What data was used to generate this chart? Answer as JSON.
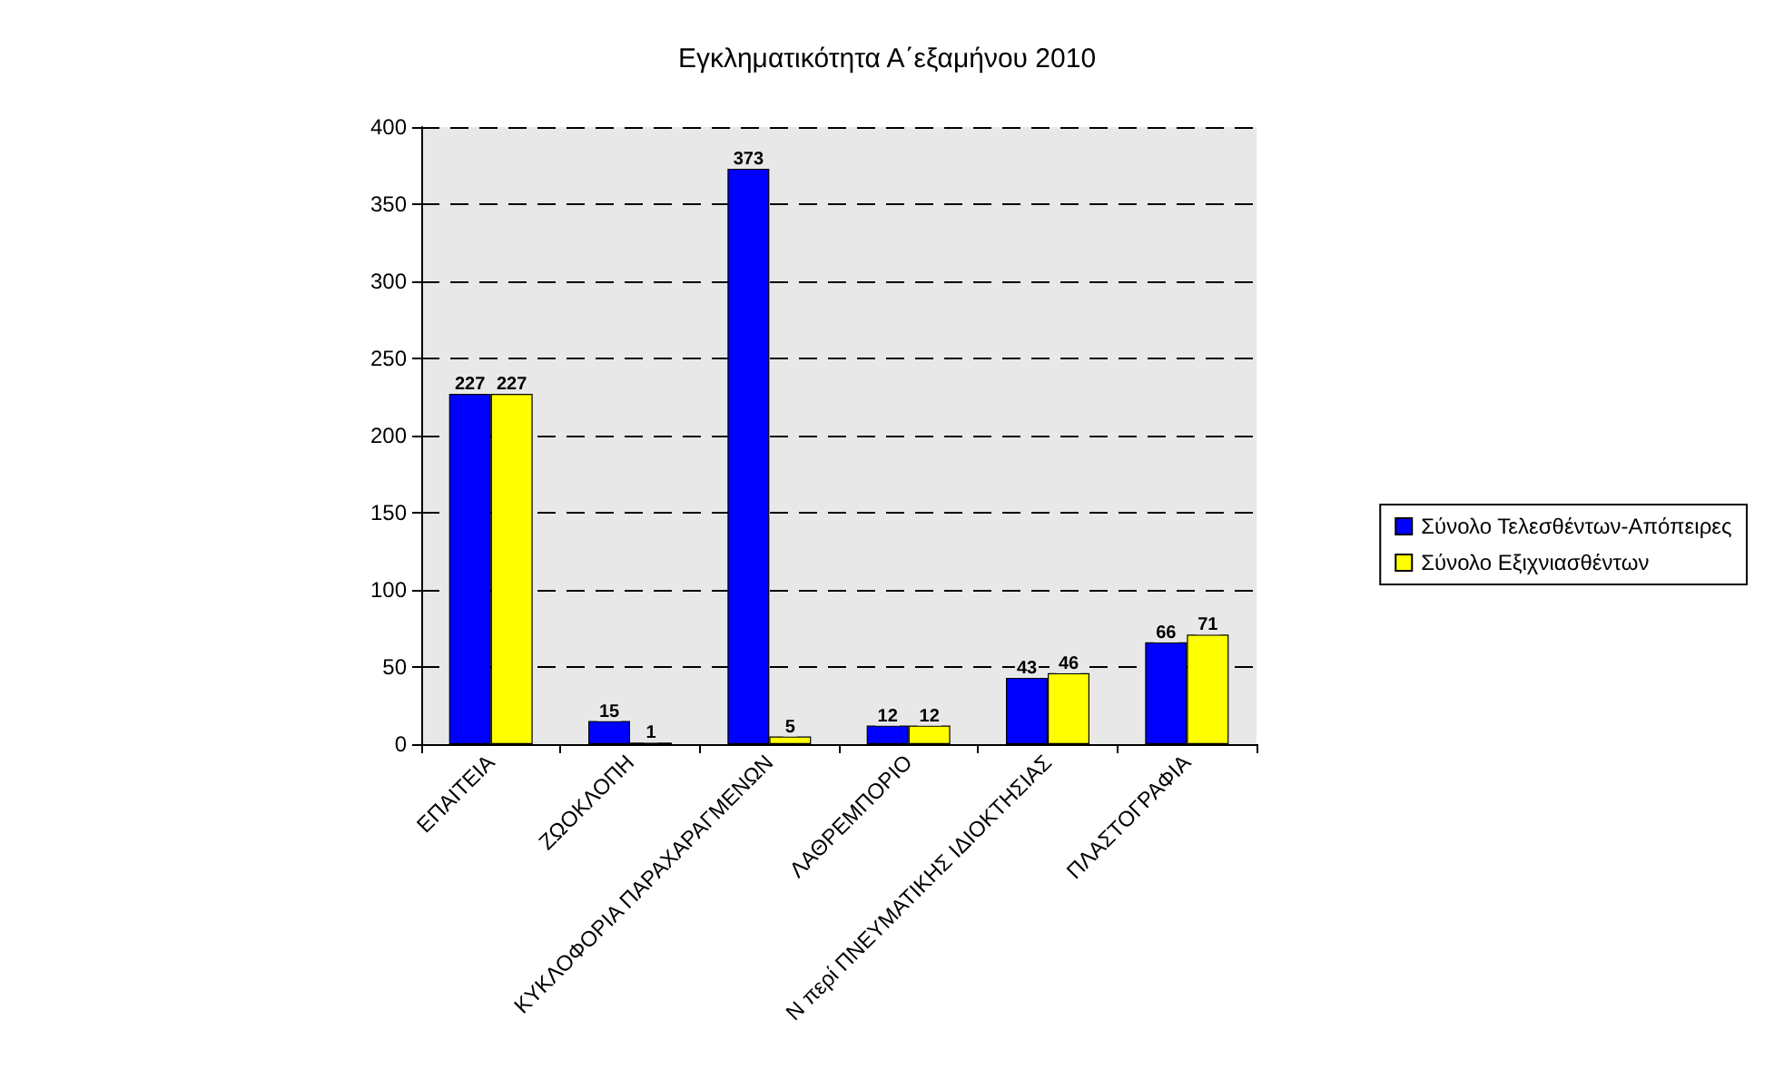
{
  "chart_data": {
    "type": "bar",
    "title": "Εγκληματικότητα Α΄εξαμήνου 2010",
    "categories": [
      "ΕΠΑΙΤΕΙΑ",
      "ΖΩΟΚΛΟΠΗ",
      "ΚΥΚΛΟΦΟΡΙΑ ΠΑΡΑΧΑΡΑΓΜΕΝΩΝ",
      "ΛΑΘΡΕΜΠΟΡΙΟ",
      "Ν περί ΠΝΕΥΜΑΤΙΚΗΣ ΙΔΙΟΚΤΗΣΙΑΣ",
      "ΠΛΑΣΤΟΓΡΑΦΙΑ"
    ],
    "series": [
      {
        "name": "Σύνολο Τελεσθέντων-Απόπειρες",
        "color": "#0000ff",
        "values": [
          227,
          15,
          373,
          12,
          43,
          66
        ]
      },
      {
        "name": "Σύνολο Εξιχνιασθέντων",
        "color": "#ffff00",
        "values": [
          227,
          1,
          5,
          12,
          46,
          71
        ]
      }
    ],
    "ylim": [
      0,
      400
    ],
    "yticks": [
      0,
      50,
      100,
      150,
      200,
      250,
      300,
      350,
      400
    ],
    "grid": "y",
    "legend": "right",
    "data_labels": true
  }
}
